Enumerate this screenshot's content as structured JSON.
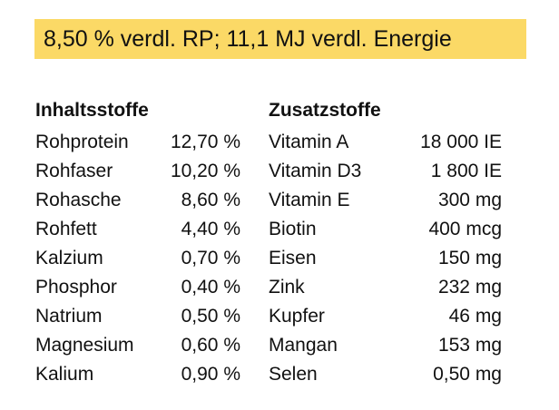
{
  "banner": {
    "text": "8,50 % verdl. RP; 11,1 MJ verdl. Energie",
    "background": "#fbd966"
  },
  "left": {
    "heading": "Inhaltsstoffe",
    "rows": [
      {
        "name": "Rohprotein",
        "value": "12,70 %"
      },
      {
        "name": "Rohfaser",
        "value": "10,20 %"
      },
      {
        "name": "Rohasche",
        "value": "8,60 %"
      },
      {
        "name": "Rohfett",
        "value": "4,40 %"
      },
      {
        "name": "Kalzium",
        "value": "0,70 %"
      },
      {
        "name": "Phosphor",
        "value": "0,40 %"
      },
      {
        "name": "Natrium",
        "value": "0,50 %"
      },
      {
        "name": "Magnesium",
        "value": "0,60 %"
      },
      {
        "name": "Kalium",
        "value": "0,90 %"
      }
    ]
  },
  "right": {
    "heading": "Zusatzstoffe",
    "rows": [
      {
        "name": "Vitamin A",
        "value": "18 000 IE"
      },
      {
        "name": "Vitamin D3",
        "value": "1 800 IE"
      },
      {
        "name": "Vitamin E",
        "value": "300 mg"
      },
      {
        "name": "Biotin",
        "value": "400 mcg"
      },
      {
        "name": "Eisen",
        "value": "150 mg"
      },
      {
        "name": "Zink",
        "value": "232 mg"
      },
      {
        "name": "Kupfer",
        "value": "46 mg"
      },
      {
        "name": "Mangan",
        "value": "153 mg"
      },
      {
        "name": "Selen",
        "value": "0,50 mg"
      }
    ]
  }
}
